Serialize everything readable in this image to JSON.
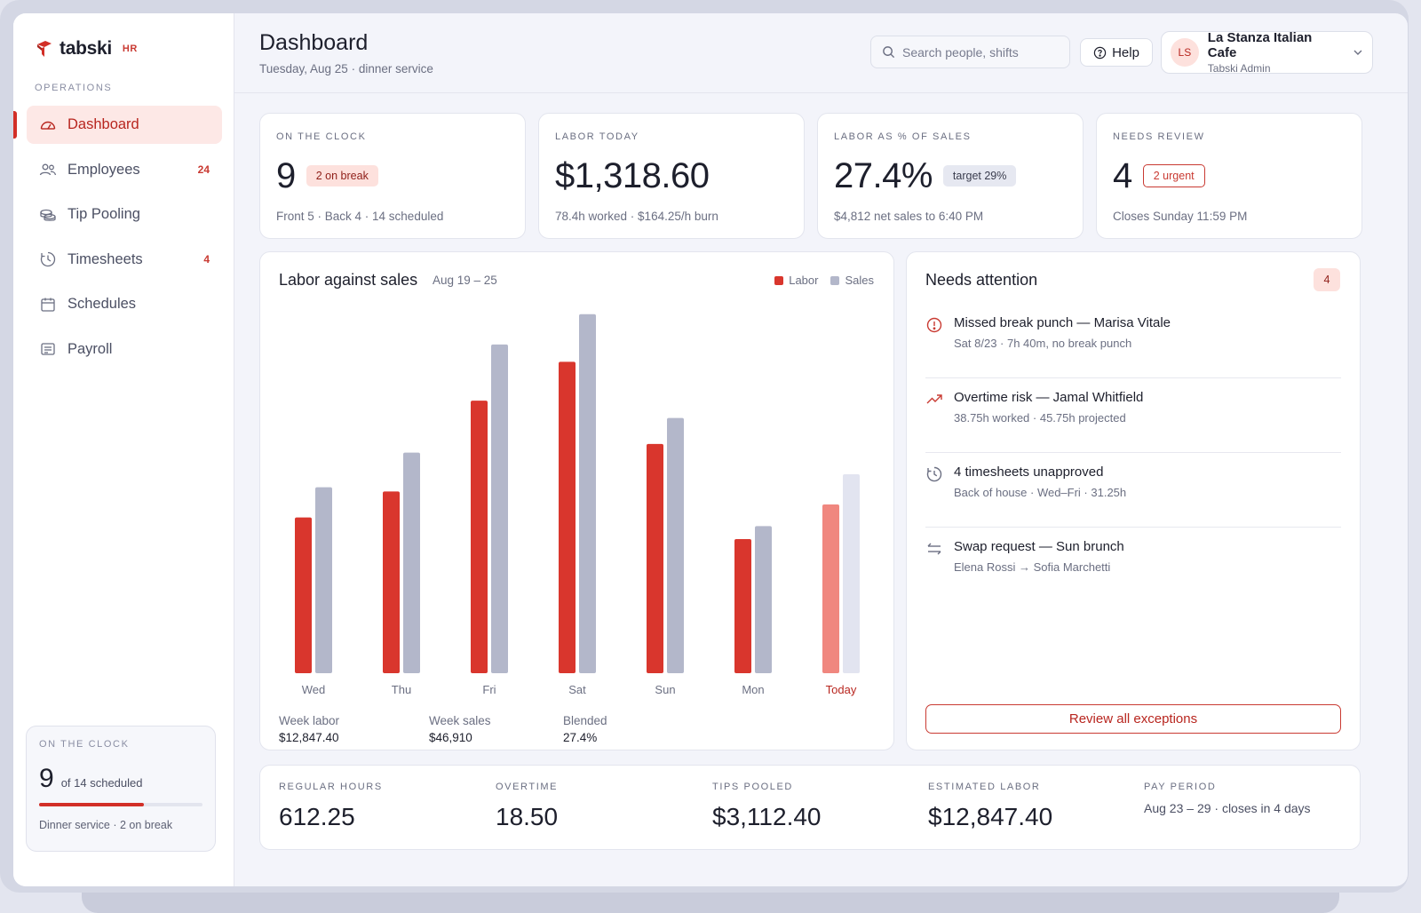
{
  "brand": {
    "name": "tabski",
    "suffix": "HR"
  },
  "sidebar": {
    "section_label": "OPERATIONS",
    "items": [
      {
        "label": "Dashboard",
        "icon": "gauge-icon",
        "count": "",
        "active": true
      },
      {
        "label": "Employees",
        "icon": "users-icon",
        "count": "24"
      },
      {
        "label": "Tip Pooling",
        "icon": "coins-icon",
        "count": ""
      },
      {
        "label": "Timesheets",
        "icon": "clock-icon",
        "count": "4"
      },
      {
        "label": "Schedules",
        "icon": "calendar-icon",
        "count": ""
      },
      {
        "label": "Payroll",
        "icon": "receipt-icon",
        "count": ""
      }
    ],
    "clock_card": {
      "label": "ON THE CLOCK",
      "count": "9",
      "of_text": "of 14 scheduled",
      "progress": 0.643,
      "footer": "Dinner service · 2 on break"
    }
  },
  "header": {
    "title": "Dashboard",
    "subtitle": "Tuesday, Aug 25 · dinner service",
    "search_placeholder": "Search people, shifts",
    "help_label": "Help",
    "account": {
      "initials": "LS",
      "name": "La Stanza Italian Cafe",
      "role": "Tabski Admin"
    }
  },
  "stats": [
    {
      "label": "ON THE CLOCK",
      "value": "9",
      "pill": "2 on break",
      "pill_style": "red",
      "sub": "Front 5 · Back 4 · 14 scheduled"
    },
    {
      "label": "LABOR TODAY",
      "value": "$1,318.60",
      "pill": "",
      "pill_style": "",
      "sub": "78.4h worked · $164.25/h burn"
    },
    {
      "label": "LABOR AS % OF SALES",
      "value": "27.4%",
      "pill": "target 29%",
      "pill_style": "gray",
      "sub": "$4,812 net sales to 6:40 PM"
    },
    {
      "label": "NEEDS REVIEW",
      "value": "4",
      "pill": "2 urgent",
      "pill_style": "outline",
      "sub": "Closes Sunday 11:59 PM"
    }
  ],
  "chart": {
    "title": "Labor against sales",
    "range": "Aug 19 – 25",
    "totals": [
      {
        "label": "Week labor",
        "value": "$12,847.40"
      },
      {
        "label": "Week sales",
        "value": "$46,910"
      },
      {
        "label": "Blended",
        "value": "27.4%"
      }
    ]
  },
  "chart_data": {
    "type": "bar",
    "categories": [
      "Wed",
      "Thu",
      "Fri",
      "Sat",
      "Sun",
      "Mon",
      "Today"
    ],
    "series": [
      {
        "name": "Labor",
        "color": "#d9362d",
        "values": [
          36,
          42,
          63,
          72,
          53,
          31,
          39
        ]
      },
      {
        "name": "Sales",
        "color": "#b3b7ca",
        "values": [
          43,
          51,
          76,
          83,
          59,
          34,
          46
        ]
      }
    ],
    "highlight_category": "Today",
    "highlight_colors": {
      "Labor": "#f0877f",
      "Sales": "#e2e4f0"
    },
    "ylim": [
      0,
      85
    ],
    "grid": false,
    "legend": "top-right",
    "xlabel": "",
    "ylabel": ""
  },
  "attention": {
    "title": "Needs attention",
    "count": "4",
    "items": [
      {
        "icon": "alert-circle-icon",
        "title": "Missed break punch — Marisa Vitale",
        "sub": "Sat 8/23 · 7h 40m, no break punch"
      },
      {
        "icon": "trending-up-icon",
        "title": "Overtime risk — Jamal Whitfield",
        "sub": "38.75h worked · 45.75h projected"
      },
      {
        "icon": "history-icon",
        "title": "4 timesheets unapproved",
        "sub": "Back of house · Wed–Fri · 31.25h"
      },
      {
        "icon": "swap-icon",
        "title": "Swap request — Sun brunch",
        "sub": "Elena Rossi → Sofia Marchetti"
      }
    ],
    "review_label": "Review all exceptions"
  },
  "bottom": [
    {
      "label": "REGULAR HOURS",
      "value": "612.25"
    },
    {
      "label": "OVERTIME",
      "value": "18.50"
    },
    {
      "label": "TIPS POOLED",
      "value": "$3,112.40"
    },
    {
      "label": "ESTIMATED LABOR",
      "value": "$12,847.40"
    },
    {
      "label": "PAY PERIOD",
      "text": "Aug 23 – 29 · closes in 4 days"
    }
  ]
}
